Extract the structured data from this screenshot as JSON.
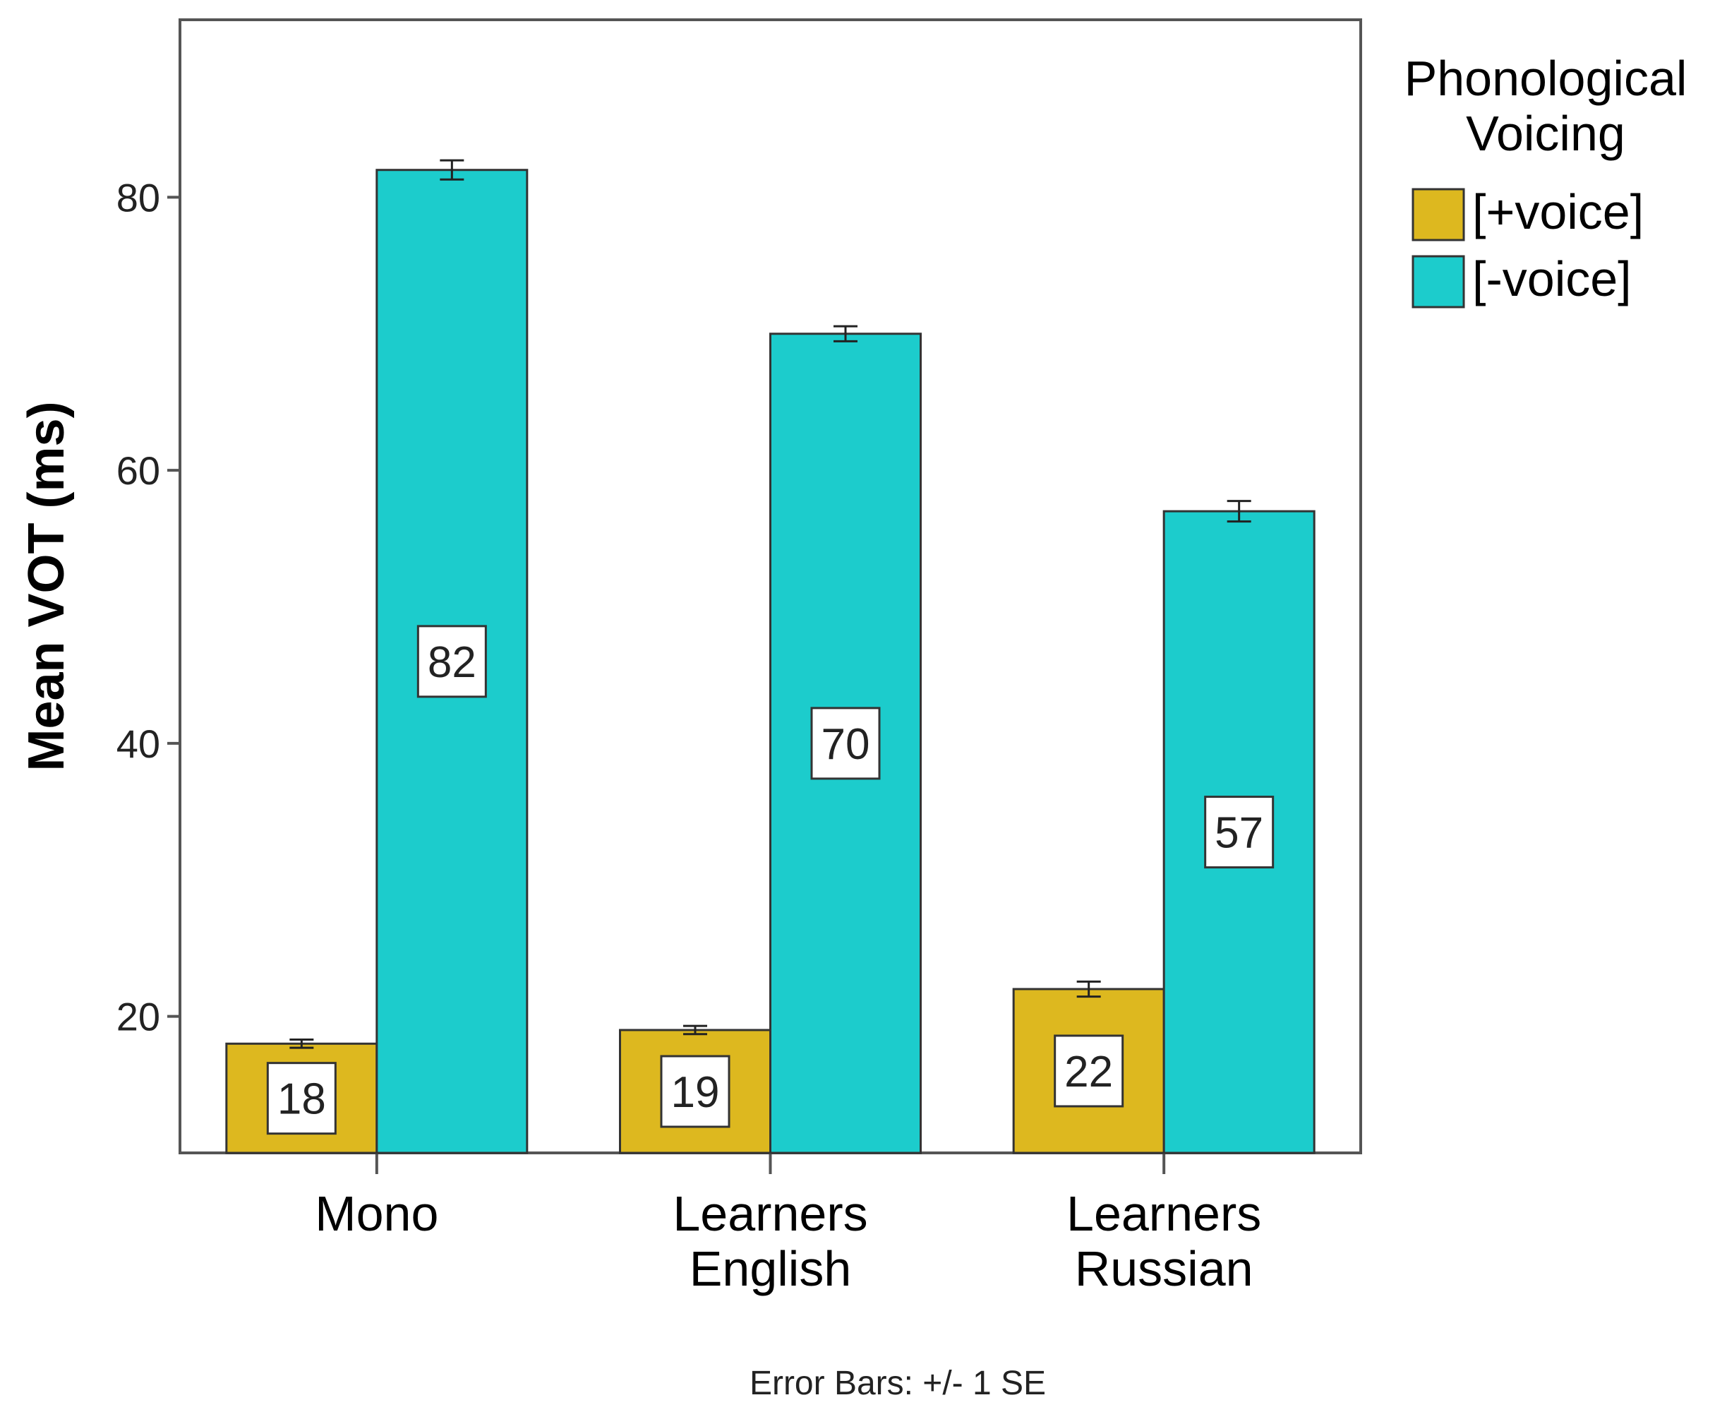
{
  "chart_data": {
    "type": "bar",
    "categories": [
      [
        "Mono"
      ],
      [
        "Learners",
        "English"
      ],
      [
        "Learners",
        "Russian"
      ]
    ],
    "series": [
      {
        "name": "[+voice]",
        "color": "#DDB81F",
        "values": [
          18,
          19,
          22
        ],
        "se": [
          0.3,
          0.3,
          0.55
        ]
      },
      {
        "name": "[-voice]",
        "color": "#1CCCCC",
        "values": [
          82,
          70,
          57
        ],
        "se": [
          0.7,
          0.55,
          0.75
        ]
      }
    ],
    "ylabel": "Mean VOT (ms)",
    "ylim": [
      10,
      93
    ],
    "yticks": [
      20,
      40,
      60,
      80
    ],
    "legend_title": [
      "Phonological",
      "Voicing"
    ],
    "legend_position": "top-right",
    "footnote": "Error Bars: +/- 1 SE",
    "grid": false
  }
}
